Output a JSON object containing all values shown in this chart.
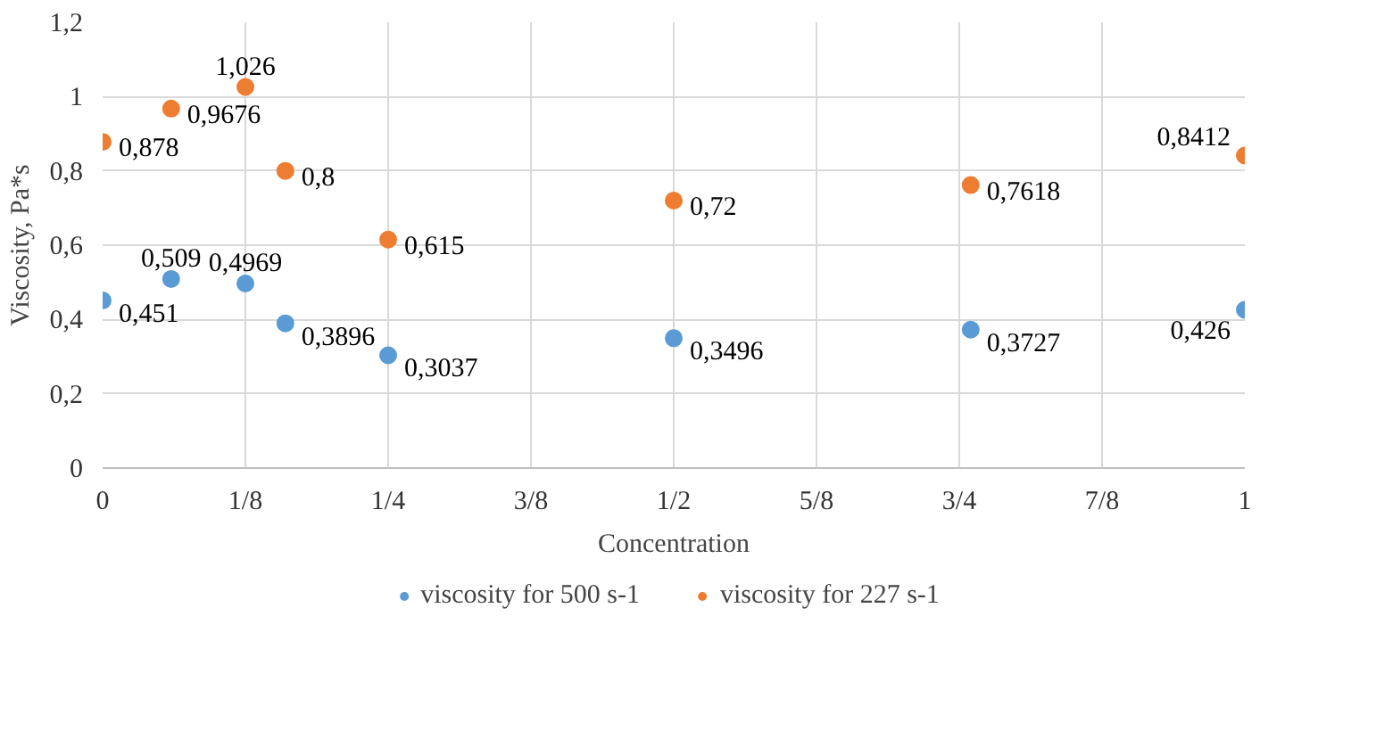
{
  "chart_data": {
    "type": "scatter",
    "xlabel": "Concentration",
    "ylabel": "Viscosity, Pa*s",
    "x": [
      0,
      0.06,
      0.125,
      0.16,
      0.25,
      0.5,
      0.76,
      1
    ],
    "series": [
      {
        "name": "viscosity for 500 s-1",
        "color": "#5b9bd5",
        "values": [
          0.451,
          0.509,
          0.4969,
          0.3896,
          0.3037,
          0.3496,
          0.3727,
          0.426
        ],
        "value_labels": [
          "0,451",
          "0,509",
          "0,4969",
          "0,3896",
          "0,3037",
          "0,3496",
          "0,3727",
          "0,426"
        ]
      },
      {
        "name": "viscosity for 227 s-1",
        "color": "#ed7d31",
        "values": [
          0.878,
          0.9676,
          1.026,
          0.8,
          0.615,
          0.72,
          0.7618,
          0.8412
        ],
        "value_labels": [
          "0,878",
          "0,9676",
          "1,026",
          "0,8",
          "0,615",
          "0,72",
          "0,7618",
          "0,8412"
        ]
      }
    ],
    "xlim": [
      0,
      1
    ],
    "xticks": [
      0,
      {
        "value": 0.125,
        "label": "1/8"
      },
      {
        "value": 0.25,
        "label": "1/4"
      },
      {
        "value": 0.375,
        "label": "3/8"
      },
      {
        "value": 0.5,
        "label": "1/2"
      },
      {
        "value": 0.625,
        "label": "5/8"
      },
      {
        "value": 0.75,
        "label": "3/4"
      },
      {
        "value": 0.875,
        "label": "7/8"
      },
      1
    ],
    "ylim": [
      0,
      1.2
    ],
    "yticks": [
      0,
      {
        "value": 0.2,
        "label": "0,2"
      },
      {
        "value": 0.4,
        "label": "0,4"
      },
      {
        "value": 0.6,
        "label": "0,6"
      },
      {
        "value": 0.8,
        "label": "0,8"
      },
      1,
      {
        "value": 1.2,
        "label": "1,2"
      }
    ],
    "grid": true,
    "legend": "bottom",
    "marker": "circle"
  }
}
